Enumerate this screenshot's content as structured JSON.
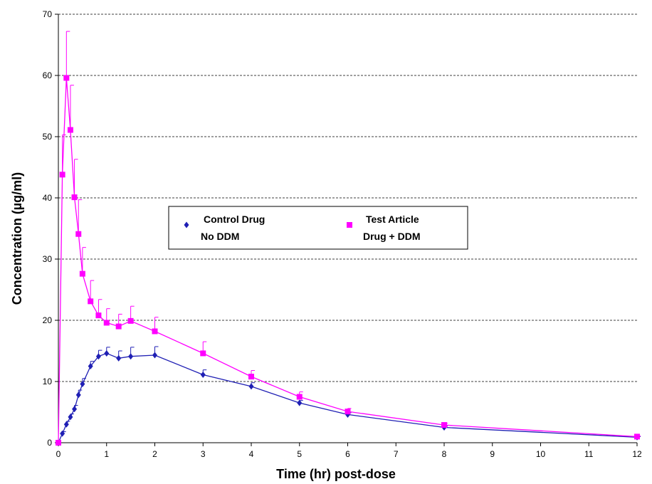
{
  "chart_data": {
    "type": "line",
    "title": "",
    "xlabel": "Time (hr) post-dose",
    "ylabel": "Concentration  (µg/ml)",
    "xlim": [
      0,
      12
    ],
    "ylim": [
      0,
      70
    ],
    "x_ticks": [
      0,
      1,
      2,
      3,
      4,
      5,
      6,
      7,
      8,
      9,
      10,
      11,
      12
    ],
    "y_ticks": [
      0,
      10,
      20,
      30,
      40,
      50,
      60,
      70
    ],
    "grid": "horizontal dashed",
    "legend_position": "center",
    "series": [
      {
        "name_lines": [
          "Control Drug",
          "No DDM"
        ],
        "color": "#1f1fb4",
        "marker": "diamond",
        "points": [
          {
            "x": 0,
            "y": 0,
            "err": 0
          },
          {
            "x": 0.083,
            "y": 1.5,
            "err": 0.3
          },
          {
            "x": 0.167,
            "y": 3.0,
            "err": 0.5
          },
          {
            "x": 0.25,
            "y": 4.2,
            "err": 0.5
          },
          {
            "x": 0.333,
            "y": 5.5,
            "err": 0.6
          },
          {
            "x": 0.417,
            "y": 7.8,
            "err": 0.8
          },
          {
            "x": 0.5,
            "y": 9.6,
            "err": 0.9
          },
          {
            "x": 0.667,
            "y": 12.5,
            "err": 0.8
          },
          {
            "x": 0.833,
            "y": 14.1,
            "err": 1.0
          },
          {
            "x": 1,
            "y": 14.6,
            "err": 1.0
          },
          {
            "x": 1.25,
            "y": 13.8,
            "err": 1.2
          },
          {
            "x": 1.5,
            "y": 14.1,
            "err": 1.5
          },
          {
            "x": 2,
            "y": 14.3,
            "err": 1.4
          },
          {
            "x": 3,
            "y": 11.1,
            "err": 0.8
          },
          {
            "x": 4,
            "y": 9.2,
            "err": 0.6
          },
          {
            "x": 5,
            "y": 6.5,
            "err": 0.4
          },
          {
            "x": 6,
            "y": 4.6,
            "err": 0.3
          },
          {
            "x": 8,
            "y": 2.5,
            "err": 0.2
          },
          {
            "x": 12,
            "y": 0.9,
            "err": 0.1
          }
        ]
      },
      {
        "name_lines": [
          "Test Article",
          "Drug + DDM"
        ],
        "color": "#ff00ff",
        "marker": "square",
        "points": [
          {
            "x": 0,
            "y": 0,
            "err": 0
          },
          {
            "x": 0.083,
            "y": 43.8,
            "err": 6.5
          },
          {
            "x": 0.167,
            "y": 59.6,
            "err": 7.6
          },
          {
            "x": 0.25,
            "y": 51.1,
            "err": 7.3
          },
          {
            "x": 0.333,
            "y": 40.1,
            "err": 6.2
          },
          {
            "x": 0.417,
            "y": 34.1,
            "err": 5.6
          },
          {
            "x": 0.5,
            "y": 27.6,
            "err": 4.3
          },
          {
            "x": 0.667,
            "y": 23.1,
            "err": 3.4
          },
          {
            "x": 0.833,
            "y": 20.8,
            "err": 2.6
          },
          {
            "x": 1,
            "y": 19.6,
            "err": 2.3
          },
          {
            "x": 1.25,
            "y": 19.0,
            "err": 2.0
          },
          {
            "x": 1.5,
            "y": 19.9,
            "err": 2.4
          },
          {
            "x": 2,
            "y": 18.2,
            "err": 2.3
          },
          {
            "x": 3,
            "y": 14.6,
            "err": 1.9
          },
          {
            "x": 4,
            "y": 10.8,
            "err": 1.0
          },
          {
            "x": 5,
            "y": 7.5,
            "err": 0.8
          },
          {
            "x": 6,
            "y": 5.1,
            "err": 0.5
          },
          {
            "x": 8,
            "y": 2.9,
            "err": 0.3
          },
          {
            "x": 12,
            "y": 1.0,
            "err": 0.1
          }
        ]
      }
    ]
  }
}
